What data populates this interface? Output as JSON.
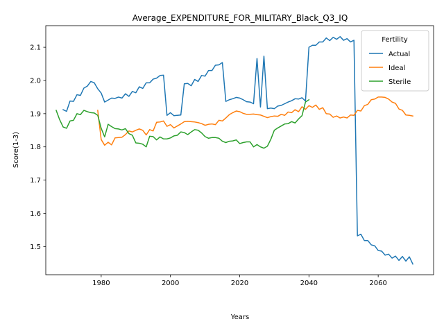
{
  "chart_data": {
    "type": "line",
    "title": "Average_EXPENDITURE_FOR_MILITARY_Black_Q3_IQ",
    "xlabel": "Years",
    "ylabel": "Score(1-3)",
    "xlim": [
      1964,
      2076
    ],
    "ylim": [
      1.415,
      2.165
    ],
    "xticks": [
      1980,
      2000,
      2020,
      2040,
      2060
    ],
    "yticks": [
      1.5,
      1.6,
      1.7,
      1.8,
      1.9,
      2.0,
      2.1
    ],
    "yticklabels": [
      "1.5",
      "1.6",
      "1.7",
      "1.8",
      "1.9",
      "2.0",
      "2.1"
    ],
    "grid": false,
    "legend": {
      "title": "Fertility",
      "placement": "top-right"
    },
    "series": [
      {
        "name": "Actual",
        "color": "#1f77b4",
        "x": [
          1969,
          1970,
          1971,
          1972,
          1973,
          1974,
          1975,
          1976,
          1977,
          1978,
          1979,
          1980,
          1981,
          1982,
          1983,
          1984,
          1985,
          1986,
          1987,
          1988,
          1989,
          1990,
          1991,
          1992,
          1993,
          1994,
          1995,
          1996,
          1997,
          1998,
          1999,
          2000,
          2001,
          2002,
          2003,
          2004,
          2005,
          2006,
          2007,
          2008,
          2009,
          2010,
          2011,
          2012,
          2013,
          2014,
          2015,
          2016,
          2017,
          2018,
          2019,
          2020,
          2021,
          2022,
          2023,
          2024,
          2025,
          2026,
          2027,
          2028,
          2029,
          2030,
          2031,
          2032,
          2033,
          2034,
          2035,
          2036,
          2037,
          2038,
          2039,
          2040,
          2041,
          2042,
          2043,
          2044,
          2045,
          2046,
          2047,
          2048,
          2049,
          2050,
          2051,
          2052,
          2053,
          2054,
          2055,
          2056,
          2057,
          2058,
          2059,
          2060,
          2061,
          2062,
          2063,
          2064,
          2065,
          2066,
          2067,
          2068,
          2069,
          2070
        ],
        "values": [
          1.912,
          1.907,
          1.938,
          1.937,
          1.957,
          1.955,
          1.977,
          1.983,
          1.997,
          1.993,
          1.975,
          1.962,
          1.935,
          1.941,
          1.947,
          1.946,
          1.95,
          1.947,
          1.96,
          1.952,
          1.967,
          1.963,
          1.981,
          1.976,
          1.993,
          1.993,
          2.004,
          2.007,
          2.015,
          2.016,
          1.895,
          1.903,
          1.894,
          1.895,
          1.896,
          1.99,
          1.991,
          1.984,
          2.003,
          1.997,
          2.015,
          2.013,
          2.03,
          2.03,
          2.046,
          2.047,
          2.054,
          1.937,
          1.942,
          1.945,
          1.949,
          1.947,
          1.942,
          1.936,
          1.935,
          1.93,
          2.066,
          1.92,
          2.073,
          1.915,
          1.917,
          1.915,
          1.923,
          1.925,
          1.93,
          1.935,
          1.939,
          1.945,
          1.944,
          1.948,
          1.938,
          2.1,
          2.106,
          2.106,
          2.116,
          2.116,
          2.128,
          2.12,
          2.13,
          2.124,
          2.132,
          2.121,
          2.126,
          2.116,
          2.121,
          1.532,
          1.537,
          1.518,
          1.518,
          1.505,
          1.502,
          1.488,
          1.486,
          1.474,
          1.477,
          1.465,
          1.471,
          1.458,
          1.47,
          1.456,
          1.469,
          1.447
        ]
      },
      {
        "name": "Ideal",
        "color": "#ff7f0e",
        "x": [
          1979,
          1980,
          1981,
          1982,
          1983,
          1984,
          1985,
          1986,
          1987,
          1988,
          1989,
          1990,
          1991,
          1992,
          1993,
          1994,
          1995,
          1996,
          1997,
          1998,
          1999,
          2000,
          2001,
          2002,
          2003,
          2004,
          2005,
          2006,
          2007,
          2008,
          2009,
          2010,
          2011,
          2012,
          2013,
          2014,
          2015,
          2016,
          2017,
          2018,
          2019,
          2020,
          2021,
          2022,
          2023,
          2024,
          2025,
          2026,
          2027,
          2028,
          2029,
          2030,
          2031,
          2032,
          2033,
          2034,
          2035,
          2036,
          2037,
          2038,
          2039,
          2040,
          2041,
          2042,
          2043,
          2044,
          2045,
          2046,
          2047,
          2048,
          2049,
          2050,
          2051,
          2052,
          2053,
          2054,
          2055,
          2056,
          2057,
          2058,
          2059,
          2060,
          2061,
          2062,
          2063,
          2064,
          2065,
          2066,
          2067,
          2068,
          2069,
          2070
        ],
        "values": [
          1.91,
          1.822,
          1.805,
          1.814,
          1.806,
          1.827,
          1.828,
          1.829,
          1.837,
          1.848,
          1.845,
          1.85,
          1.854,
          1.85,
          1.836,
          1.852,
          1.848,
          1.874,
          1.875,
          1.878,
          1.862,
          1.867,
          1.857,
          1.863,
          1.869,
          1.876,
          1.877,
          1.876,
          1.875,
          1.873,
          1.87,
          1.865,
          1.868,
          1.869,
          1.867,
          1.88,
          1.878,
          1.887,
          1.897,
          1.903,
          1.908,
          1.906,
          1.901,
          1.898,
          1.898,
          1.899,
          1.897,
          1.896,
          1.892,
          1.888,
          1.891,
          1.893,
          1.892,
          1.898,
          1.895,
          1.905,
          1.903,
          1.912,
          1.906,
          1.921,
          1.913,
          1.924,
          1.919,
          1.926,
          1.913,
          1.918,
          1.9,
          1.899,
          1.889,
          1.893,
          1.887,
          1.89,
          1.887,
          1.896,
          1.895,
          1.91,
          1.908,
          1.924,
          1.928,
          1.942,
          1.944,
          1.95,
          1.95,
          1.949,
          1.944,
          1.935,
          1.931,
          1.914,
          1.91,
          1.896,
          1.895,
          1.893
        ]
      },
      {
        "name": "Sterile",
        "color": "#2ca02c",
        "x": [
          1967,
          1968,
          1969,
          1970,
          1971,
          1972,
          1973,
          1974,
          1975,
          1976,
          1977,
          1978,
          1979,
          1980,
          1981,
          1982,
          1983,
          1984,
          1985,
          1986,
          1987,
          1988,
          1989,
          1990,
          1991,
          1992,
          1993,
          1994,
          1995,
          1996,
          1997,
          1998,
          1999,
          2000,
          2001,
          2002,
          2003,
          2004,
          2005,
          2006,
          2007,
          2008,
          2009,
          2010,
          2011,
          2012,
          2013,
          2014,
          2015,
          2016,
          2017,
          2018,
          2019,
          2020,
          2021,
          2022,
          2023,
          2024,
          2025,
          2026,
          2027,
          2028,
          2029,
          2030,
          2031,
          2032,
          2033,
          2034,
          2035,
          2036,
          2037,
          2038,
          2039,
          2040
        ],
        "values": [
          1.91,
          1.882,
          1.86,
          1.856,
          1.878,
          1.88,
          1.9,
          1.897,
          1.91,
          1.906,
          1.903,
          1.902,
          1.895,
          1.856,
          1.83,
          1.868,
          1.861,
          1.855,
          1.854,
          1.851,
          1.855,
          1.84,
          1.835,
          1.812,
          1.811,
          1.808,
          1.8,
          1.832,
          1.831,
          1.821,
          1.83,
          1.824,
          1.824,
          1.827,
          1.833,
          1.835,
          1.845,
          1.843,
          1.837,
          1.845,
          1.852,
          1.85,
          1.842,
          1.831,
          1.826,
          1.828,
          1.828,
          1.826,
          1.817,
          1.813,
          1.817,
          1.818,
          1.821,
          1.81,
          1.813,
          1.815,
          1.815,
          1.8,
          1.807,
          1.8,
          1.796,
          1.802,
          1.823,
          1.85,
          1.857,
          1.863,
          1.869,
          1.87,
          1.876,
          1.872,
          1.884,
          1.894,
          1.935,
          1.942
        ]
      }
    ]
  }
}
